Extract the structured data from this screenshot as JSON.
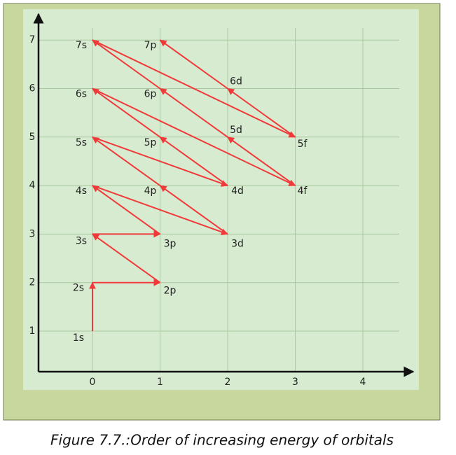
{
  "y_axis": {
    "ticks": [
      "1",
      "2",
      "3",
      "4",
      "5",
      "6",
      "7"
    ]
  },
  "x_axis": {
    "ticks": [
      "0",
      "1",
      "2",
      "3",
      "4"
    ]
  },
  "orbitals": [
    "1s",
    "2s",
    "2p",
    "3s",
    "3p",
    "4s",
    "3d",
    "4p",
    "5s",
    "4d",
    "5p",
    "6s",
    "4f",
    "5d",
    "6p",
    "7s",
    "5f",
    "6d",
    "7p"
  ],
  "caption": "Figure 7.7.:Order of increasing energy of orbitals"
}
